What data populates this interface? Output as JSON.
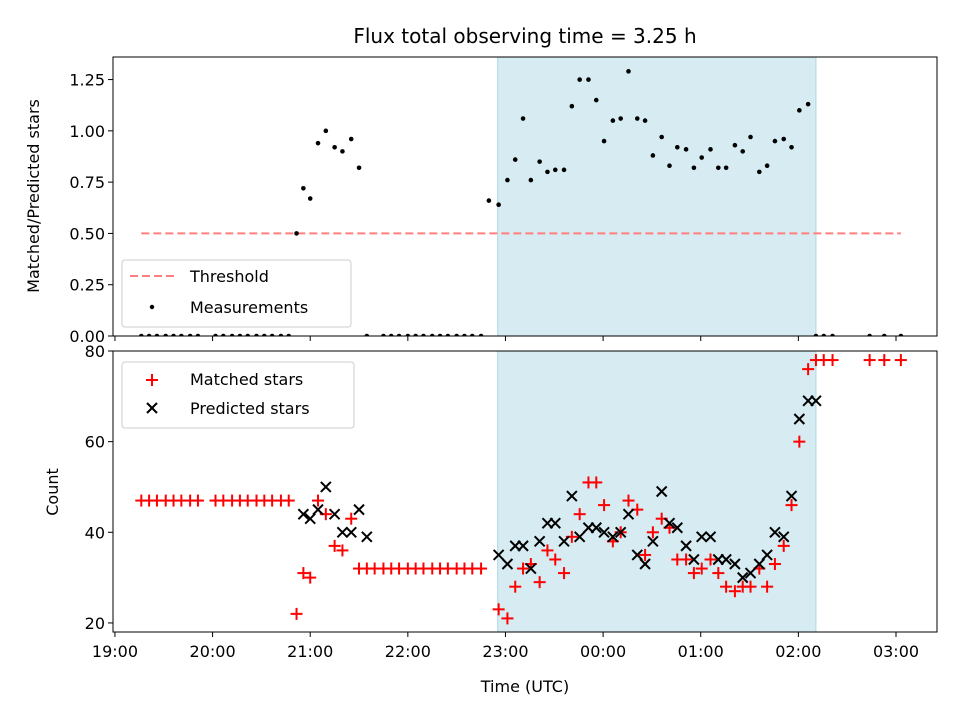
{
  "chart_data": {
    "type": "scatter",
    "title": "Flux total observing time = 3.25 h",
    "xlabel": "Time (UTC)",
    "x_ticks": [
      "19:00",
      "20:00",
      "21:00",
      "22:00",
      "23:00",
      "00:00",
      "01:00",
      "02:00",
      "03:00"
    ],
    "x_range_hours": [
      18.98,
      27.42
    ],
    "observing_window_hours": [
      22.92,
      26.18
    ],
    "panels": [
      {
        "ylabel": "Matched/Predicted stars",
        "ylim": [
          0,
          1.36
        ],
        "yticks": [
          0.0,
          0.25,
          0.5,
          0.75,
          1.0,
          1.25
        ],
        "ytick_labels": [
          "0.00",
          "0.25",
          "0.50",
          "0.75",
          "1.00",
          "1.25"
        ],
        "legend_position": "lower-left",
        "threshold": {
          "name": "Threshold",
          "value": 0.5,
          "x_start": 19.27,
          "x_end": 27.05,
          "color": "#ff7f7f"
        },
        "series": [
          {
            "name": "Measurements",
            "color": "#000000",
            "x": [
              19.27,
              19.35,
              19.43,
              19.52,
              19.6,
              19.68,
              19.77,
              19.85,
              20.03,
              20.11,
              20.2,
              20.28,
              20.36,
              20.45,
              20.53,
              20.61,
              20.7,
              20.78,
              20.86,
              20.93,
              21.0,
              21.08,
              21.16,
              21.25,
              21.33,
              21.42,
              21.5,
              21.58,
              21.75,
              21.83,
              21.91,
              22.0,
              22.08,
              22.16,
              22.25,
              22.33,
              22.41,
              22.5,
              22.58,
              22.66,
              22.75,
              22.83,
              22.93,
              23.02,
              23.1,
              23.18,
              23.26,
              23.35,
              23.43,
              23.51,
              23.6,
              23.68,
              23.76,
              23.85,
              23.93,
              24.01,
              24.1,
              24.18,
              24.26,
              24.35,
              24.43,
              24.51,
              24.6,
              24.68,
              24.76,
              24.85,
              24.93,
              25.01,
              25.1,
              25.18,
              25.26,
              25.35,
              25.43,
              25.51,
              25.6,
              25.68,
              25.76,
              25.85,
              25.93,
              26.01,
              26.1,
              26.18,
              26.26,
              26.35,
              26.73,
              26.88,
              27.05
            ],
            "y": [
              0,
              0,
              0,
              0,
              0,
              0,
              0,
              0,
              0,
              0,
              0,
              0,
              0,
              0,
              0,
              0,
              0,
              0,
              0.5,
              0.72,
              0.67,
              0.94,
              1.0,
              0.92,
              0.9,
              0.96,
              0.82,
              0,
              0,
              0,
              0,
              0,
              0,
              0,
              0,
              0,
              0,
              0,
              0,
              0,
              0,
              0.66,
              0.64,
              0.76,
              0.86,
              1.06,
              0.76,
              0.85,
              0.8,
              0.81,
              0.81,
              1.12,
              1.25,
              1.25,
              1.15,
              0.95,
              1.05,
              1.06,
              1.29,
              1.06,
              1.05,
              0.88,
              0.97,
              0.83,
              0.92,
              0.91,
              0.82,
              0.87,
              0.91,
              0.82,
              0.82,
              0.93,
              0.9,
              0.97,
              0.8,
              0.83,
              0.95,
              0.96,
              0.92,
              1.1,
              1.13,
              0,
              0,
              0,
              0,
              0,
              0
            ]
          }
        ]
      },
      {
        "ylabel": "Count",
        "ylim": [
          18,
          80
        ],
        "yticks": [
          20,
          40,
          60,
          80
        ],
        "ytick_labels": [
          "20",
          "40",
          "60",
          "80"
        ],
        "legend_position": "upper-left",
        "series": [
          {
            "name": "Matched stars",
            "marker": "+",
            "color": "#ff0000",
            "x": [
              19.27,
              19.35,
              19.43,
              19.52,
              19.6,
              19.68,
              19.77,
              19.85,
              20.03,
              20.11,
              20.2,
              20.28,
              20.36,
              20.45,
              20.53,
              20.61,
              20.7,
              20.78,
              20.86,
              20.93,
              21.0,
              21.08,
              21.16,
              21.25,
              21.33,
              21.42,
              21.5,
              21.58,
              21.66,
              21.75,
              21.83,
              21.91,
              22.0,
              22.08,
              22.16,
              22.25,
              22.33,
              22.41,
              22.5,
              22.58,
              22.66,
              22.75,
              22.93,
              23.02,
              23.1,
              23.18,
              23.26,
              23.35,
              23.43,
              23.51,
              23.6,
              23.68,
              23.76,
              23.85,
              23.93,
              24.01,
              24.1,
              24.18,
              24.26,
              24.35,
              24.43,
              24.51,
              24.6,
              24.68,
              24.76,
              24.85,
              24.93,
              25.01,
              25.1,
              25.18,
              25.26,
              25.35,
              25.43,
              25.51,
              25.6,
              25.68,
              25.76,
              25.85,
              25.93,
              26.01,
              26.1,
              26.18,
              26.26,
              26.35,
              26.73,
              26.88,
              27.05
            ],
            "y": [
              47,
              47,
              47,
              47,
              47,
              47,
              47,
              47,
              47,
              47,
              47,
              47,
              47,
              47,
              47,
              47,
              47,
              47,
              22,
              31,
              30,
              47,
              44,
              37,
              36,
              43,
              32,
              32,
              32,
              32,
              32,
              32,
              32,
              32,
              32,
              32,
              32,
              32,
              32,
              32,
              32,
              32,
              23,
              21,
              28,
              32,
              33,
              29,
              36,
              34,
              31,
              39,
              44,
              51,
              51,
              46,
              38,
              40,
              47,
              45,
              35,
              40,
              43,
              41,
              34,
              34,
              31,
              32,
              34,
              31,
              28,
              27,
              28,
              28,
              32,
              28,
              33,
              37,
              46,
              60,
              76,
              78,
              78,
              78,
              78,
              78,
              78
            ]
          },
          {
            "name": "Predicted stars",
            "marker": "x",
            "color": "#000000",
            "x": [
              20.93,
              21.0,
              21.08,
              21.16,
              21.25,
              21.33,
              21.42,
              21.5,
              21.58,
              22.93,
              23.02,
              23.1,
              23.18,
              23.26,
              23.35,
              23.43,
              23.51,
              23.6,
              23.68,
              23.76,
              23.85,
              23.93,
              24.01,
              24.1,
              24.18,
              24.26,
              24.35,
              24.43,
              24.51,
              24.6,
              24.68,
              24.76,
              24.85,
              24.93,
              25.01,
              25.1,
              25.18,
              25.26,
              25.35,
              25.43,
              25.51,
              25.6,
              25.68,
              25.76,
              25.85,
              25.93,
              26.01,
              26.1,
              26.18
            ],
            "y": [
              44,
              43,
              45,
              50,
              44,
              40,
              40,
              45,
              39,
              35,
              33,
              37,
              37,
              32,
              38,
              42,
              42,
              38,
              48,
              39,
              41,
              41,
              40,
              39,
              40,
              44,
              35,
              33,
              38,
              49,
              42,
              41,
              37,
              34,
              39,
              39,
              34,
              34,
              33,
              30,
              31,
              33,
              35,
              40,
              39,
              48,
              65,
              69,
              69
            ]
          }
        ]
      }
    ]
  }
}
